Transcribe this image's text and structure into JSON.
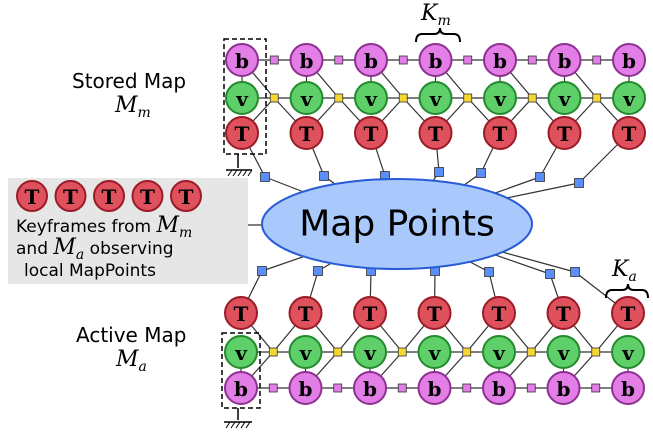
{
  "labels": {
    "stored_map": "Stored Map",
    "stored_map_symbol": "M",
    "stored_map_sub": "m",
    "active_map": "Active Map",
    "active_map_symbol": "M",
    "active_map_sub": "a",
    "k_m_symbol": "K",
    "k_m_sub": "m",
    "k_a_symbol": "K",
    "k_a_sub": "a",
    "map_points": "Map Points",
    "legend_line1_text": "Keyframes from ",
    "legend_line1_symbol": "M",
    "legend_line1_sub": "m",
    "legend_line2_pre": "and ",
    "legend_line2_symbol": "M",
    "legend_line2_sub": "a",
    "legend_line2_post": " observing",
    "legend_line3": "local MapPoints"
  },
  "node_letters": {
    "bias": "b",
    "velocity": "v",
    "pose": "T"
  },
  "colors": {
    "bias_fill": "#e27ee6",
    "bias_stroke": "#8e2f92",
    "velocity_fill": "#5fcf6a",
    "velocity_stroke": "#238a2e",
    "pose_fill": "#e0515e",
    "pose_stroke": "#9a1c27",
    "map_points_fill": "#a9c8fb",
    "map_points_stroke": "#2a5bd6",
    "mappoint_square": "#5c8ef7",
    "imu_square": "#f6d632",
    "bias_square": "#e27ee6",
    "legend_bg": "#e6e6e6"
  },
  "keyframe_count": 7,
  "legend_keyframe_count": 5
}
